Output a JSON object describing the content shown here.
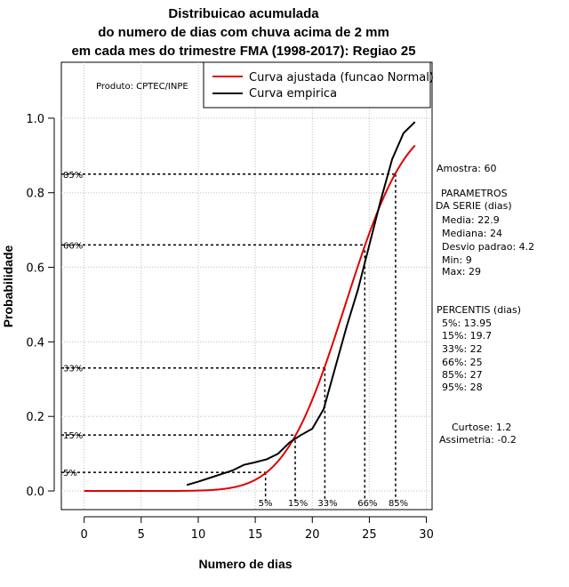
{
  "chart_data": {
    "type": "line",
    "title": [
      "Distribuicao acumulada",
      "do numero de dias com chuva acima de 2 mm",
      "em cada mes do trimestre FMA (1998-2017): Regiao 25"
    ],
    "xlabel": "Numero de dias",
    "ylabel": "Probabilidade",
    "xlim": [
      -2,
      30.5
    ],
    "ylim": [
      -0.05,
      1.15
    ],
    "x_ticks": [
      0,
      5,
      10,
      15,
      20,
      25,
      30
    ],
    "y_ticks": [
      0.0,
      0.2,
      0.4,
      0.6,
      0.8,
      1.0
    ],
    "grid": true,
    "legend_position": "top-right",
    "series": [
      {
        "name": "Curva ajustada (funcao Normal)",
        "color": "#e00000",
        "distribution": "normal",
        "mean": 22.9,
        "sd": 4.2,
        "x_range": [
          0,
          29
        ]
      },
      {
        "name": "Curva empirica",
        "color": "#000000",
        "x": [
          9,
          10,
          11,
          12,
          13,
          14,
          15,
          16,
          17,
          18,
          19,
          20,
          21,
          22,
          23,
          24,
          25,
          26,
          27,
          28,
          29
        ],
        "y": [
          0.016,
          0.025,
          0.035,
          0.045,
          0.055,
          0.07,
          0.077,
          0.085,
          0.1,
          0.13,
          0.15,
          0.167,
          0.22,
          0.33,
          0.44,
          0.54,
          0.66,
          0.78,
          0.89,
          0.96,
          0.99
        ]
      }
    ],
    "percentile_lines": [
      {
        "label": "5%",
        "y": 0.05,
        "x": 15.9
      },
      {
        "label": "15%",
        "y": 0.15,
        "x": 18.5
      },
      {
        "label": "33%",
        "y": 0.33,
        "x": 21.1
      },
      {
        "label": "66%",
        "y": 0.66,
        "x": 24.6
      },
      {
        "label": "85%",
        "y": 0.85,
        "x": 27.3
      }
    ],
    "annotation": "Produto: CPTEC/INPE"
  },
  "side_panel": {
    "sample": "Amostra: 60",
    "params_title": [
      "PARAMETROS",
      "DA SERIE (dias)"
    ],
    "params": [
      "Media: 22.9",
      "Mediana: 24",
      "Desvio padrao: 4.2",
      "Min: 9",
      "Max: 29"
    ],
    "percentiles_title": "PERCENTIS (dias)",
    "percentiles": [
      "5%: 13.95",
      "15%: 19.7",
      "33%: 22",
      "66%: 25",
      "85%: 27",
      "95%: 28"
    ],
    "curtose": "Curtose: 1.2",
    "assimetria": "Assimetria: -0.2"
  }
}
